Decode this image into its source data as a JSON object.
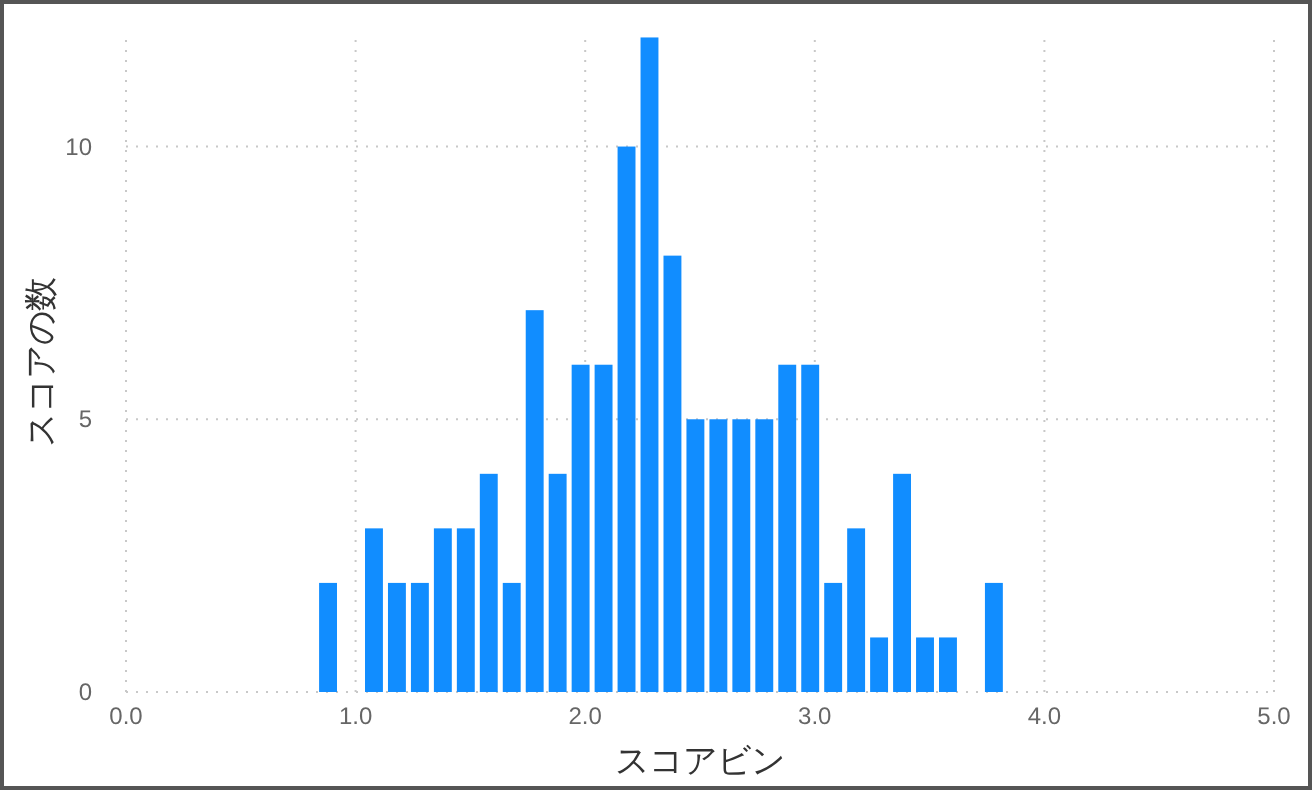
{
  "chart_data": {
    "type": "histogram",
    "xlabel": "スコアビン",
    "ylabel": "スコアの数",
    "bins": [
      0.83,
      0.93,
      1.03,
      1.13,
      1.23,
      1.33,
      1.43,
      1.53,
      1.63,
      1.73,
      1.83,
      1.93,
      2.03,
      2.13,
      2.23,
      2.33,
      2.43,
      2.53,
      2.63,
      2.73,
      2.83,
      2.93,
      3.03,
      3.13,
      3.23,
      3.33,
      3.43,
      3.53,
      3.63,
      3.73,
      3.83
    ],
    "values": [
      2,
      0,
      3,
      2,
      2,
      3,
      3,
      4,
      2,
      7,
      4,
      6,
      6,
      10,
      12,
      8,
      5,
      5,
      5,
      5,
      6,
      6,
      2,
      3,
      1,
      4,
      1,
      1,
      0,
      2
    ],
    "color": "#118dff",
    "xlim": [
      0,
      5
    ],
    "xticks": [
      {
        "value": 0,
        "label": "0.0"
      },
      {
        "value": 1,
        "label": "1.0"
      },
      {
        "value": 2,
        "label": "2.0"
      },
      {
        "value": 3,
        "label": "3.0"
      },
      {
        "value": 4,
        "label": "4.0"
      },
      {
        "value": 5,
        "label": "5.0"
      }
    ],
    "ylim": [
      0,
      12.1
    ],
    "yticks": [
      0,
      5,
      10
    ],
    "grid": true
  }
}
